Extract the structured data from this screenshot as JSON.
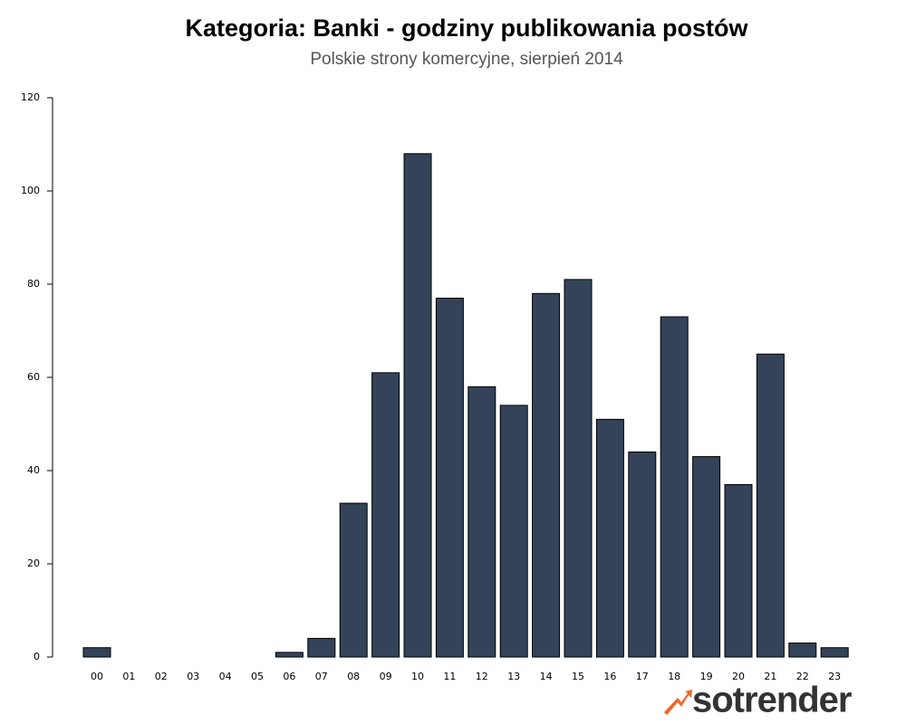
{
  "chart_data": {
    "type": "bar",
    "title": "Kategoria: Banki - godziny publikowania postów",
    "subtitle": "Polskie strony komercyjne, sierpień 2014",
    "categories": [
      "00",
      "01",
      "02",
      "03",
      "04",
      "05",
      "06",
      "07",
      "08",
      "09",
      "10",
      "11",
      "12",
      "13",
      "14",
      "15",
      "16",
      "17",
      "18",
      "19",
      "20",
      "21",
      "22",
      "23"
    ],
    "values": [
      2,
      0,
      0,
      0,
      0,
      0,
      1,
      4,
      33,
      61,
      108,
      77,
      58,
      54,
      78,
      81,
      51,
      44,
      73,
      43,
      37,
      65,
      3,
      2
    ],
    "color": "#344359",
    "ylim": [
      0,
      120
    ],
    "yticks": [
      0,
      20,
      40,
      60,
      80,
      100,
      120
    ],
    "grid": false
  },
  "logo": "sotrender"
}
